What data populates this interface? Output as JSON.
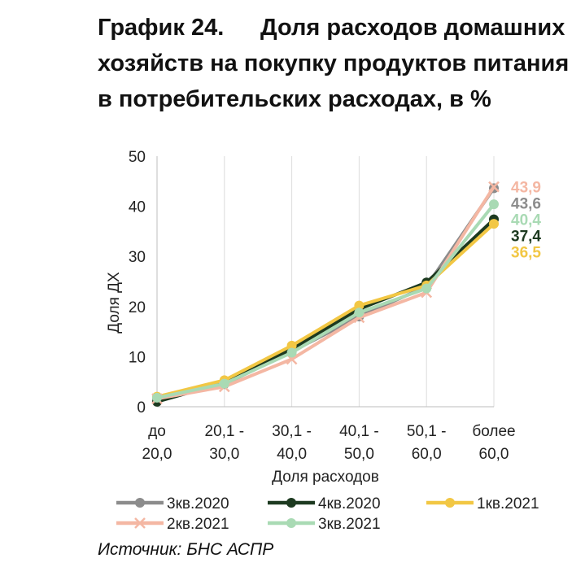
{
  "title": {
    "number": "График 24.",
    "text": "Доля расходов домашних хозяйств на покупку продуктов питания в потребительских расходах, в %"
  },
  "source": "Источник: БНС АСПР",
  "chart_data": {
    "type": "line",
    "xlabel": "Доля расходов",
    "ylabel": "Доля ДХ",
    "ylim": [
      0,
      50
    ],
    "yticks": [
      "0",
      "10",
      "20",
      "30",
      "40",
      "50"
    ],
    "categories": [
      [
        "до",
        "20,0"
      ],
      [
        "20,1 -",
        "30,0"
      ],
      [
        "30,1 -",
        "40,0"
      ],
      [
        "40,1 -",
        "50,0"
      ],
      [
        "50,1 -",
        "60,0"
      ],
      [
        "более",
        "60,0"
      ]
    ],
    "grid": "vertical",
    "legend_position": "bottom",
    "series": [
      {
        "name": "3кв.2020",
        "color": "#8c8c8c",
        "marker": "circle",
        "values": [
          1.5,
          4.5,
          11.0,
          18.0,
          24.0,
          43.6
        ],
        "end_label": "43,6"
      },
      {
        "name": "4кв.2020",
        "color": "#1d3a20",
        "marker": "circle",
        "values": [
          1.0,
          4.8,
          11.5,
          19.5,
          24.8,
          37.4
        ],
        "end_label": "37,4"
      },
      {
        "name": "1кв.2021",
        "color": "#f2c744",
        "marker": "circle",
        "values": [
          2.0,
          5.3,
          12.2,
          20.2,
          24.2,
          36.5
        ],
        "end_label": "36,5"
      },
      {
        "name": "2кв.2021",
        "color": "#f4b7a3",
        "marker": "x",
        "values": [
          1.6,
          4.0,
          9.5,
          17.8,
          22.8,
          43.9
        ],
        "end_label": "43,9"
      },
      {
        "name": "3кв.2021",
        "color": "#a9dab4",
        "marker": "circle",
        "values": [
          1.8,
          4.6,
          10.8,
          18.8,
          23.6,
          40.4
        ],
        "end_label": "40,4"
      }
    ]
  }
}
